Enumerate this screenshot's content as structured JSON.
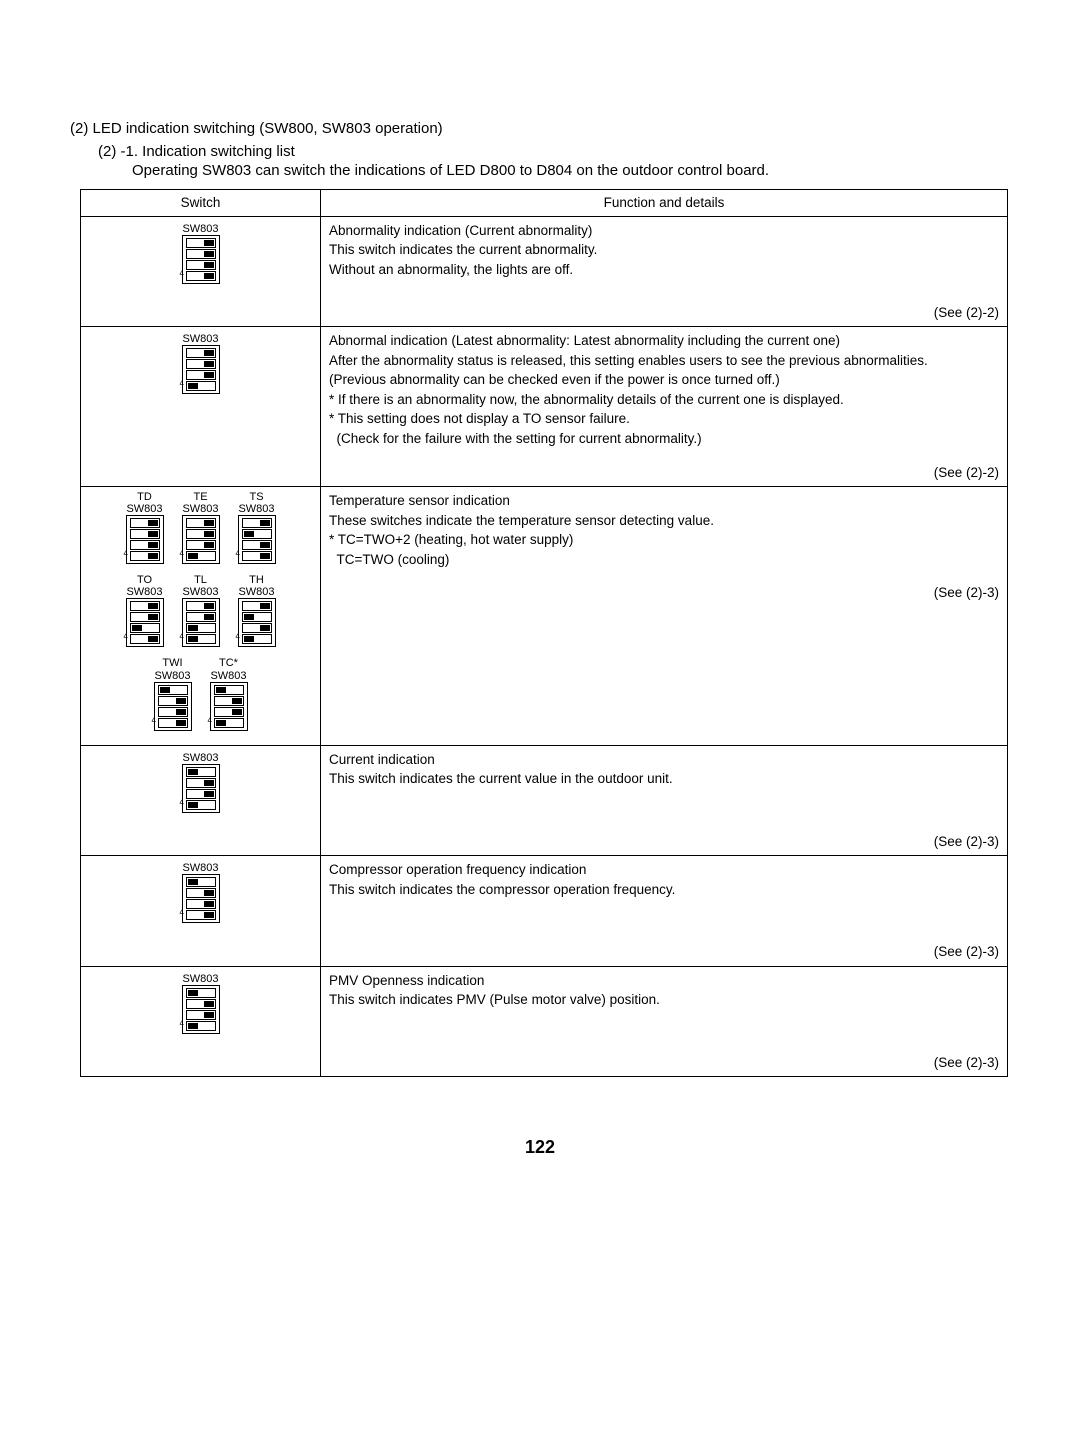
{
  "headings": {
    "h1": "(2) LED indication switching (SW800, SW803 operation)",
    "h2": "(2) -1. Indication switching list",
    "h3": "Operating SW803 can switch the indications of LED D800 to D804 on the outdoor control board."
  },
  "table": {
    "header": {
      "switch": "Switch",
      "func": "Function and details"
    },
    "rows": [
      {
        "switches": [
          {
            "topLabel": "",
            "label": "SW803",
            "pattern": [
              "on",
              "on",
              "on",
              "on"
            ]
          }
        ],
        "lines": [
          "Abnormality indication (Current abnormality)",
          "This switch indicates the current abnormality.",
          "Without an abnormality, the lights are off."
        ],
        "see": "(See (2)-2)"
      },
      {
        "switches": [
          {
            "topLabel": "",
            "label": "SW803",
            "pattern": [
              "on",
              "on",
              "on",
              "off"
            ]
          }
        ],
        "lines": [
          "Abnormal indication (Latest abnormality: Latest abnormality including the current one)",
          "After the abnormality status is released, this setting enables users to see the previous abnormalities.",
          "(Previous abnormality can be checked even if the power is once turned off.)",
          "* If there is an abnormality now, the abnormality details of the current one is displayed.",
          "* This setting does not display a TO sensor failure.",
          "  (Check for the failure with the setting for current abnormality.)"
        ],
        "see": "(See (2)-2)"
      },
      {
        "switchGroups": [
          [
            {
              "topLabel": "TD",
              "label": "SW803",
              "pattern": [
                "on",
                "on",
                "on",
                "on"
              ]
            },
            {
              "topLabel": "TE",
              "label": "SW803",
              "pattern": [
                "on",
                "on",
                "on",
                "off"
              ]
            },
            {
              "topLabel": "TS",
              "label": "SW803",
              "pattern": [
                "on",
                "off",
                "on",
                "on"
              ]
            }
          ],
          [
            {
              "topLabel": "TO",
              "label": "SW803",
              "pattern": [
                "on",
                "on",
                "off",
                "on"
              ]
            },
            {
              "topLabel": "TL",
              "label": "SW803",
              "pattern": [
                "on",
                "on",
                "off",
                "off"
              ]
            },
            {
              "topLabel": "TH",
              "label": "SW803",
              "pattern": [
                "on",
                "off",
                "on",
                "off"
              ]
            }
          ],
          [
            {
              "topLabel": "TWI",
              "label": "SW803",
              "pattern": [
                "off",
                "on",
                "on",
                "on"
              ]
            },
            {
              "topLabel": "TC*",
              "label": "SW803",
              "pattern": [
                "off",
                "on",
                "on",
                "off"
              ]
            }
          ]
        ],
        "lines": [
          "Temperature sensor indication",
          "These switches indicate the temperature sensor detecting value.",
          "* TC=TWO+2 (heating, hot water supply)",
          "  TC=TWO (cooling)"
        ],
        "see": "(See (2)-3)"
      },
      {
        "switches": [
          {
            "topLabel": "",
            "label": "SW803",
            "pattern": [
              "off",
              "on",
              "on",
              "off"
            ]
          }
        ],
        "lines": [
          "Current indication",
          "This switch indicates the current value in the outdoor unit."
        ],
        "see": "(See (2)-3)"
      },
      {
        "switches": [
          {
            "topLabel": "",
            "label": "SW803",
            "pattern": [
              "off",
              "on",
              "on",
              "on"
            ]
          }
        ],
        "lines": [
          "Compressor operation frequency indication",
          "This switch indicates the compressor operation frequency."
        ],
        "see": "(See (2)-3)"
      },
      {
        "switches": [
          {
            "topLabel": "",
            "label": "SW803",
            "pattern": [
              "off",
              "on",
              "on",
              "off"
            ]
          }
        ],
        "lines": [
          "PMV Openness indication",
          "This switch indicates PMV (Pulse motor valve) position."
        ],
        "see": "(See (2)-3)"
      }
    ]
  },
  "pageNumber": "122"
}
